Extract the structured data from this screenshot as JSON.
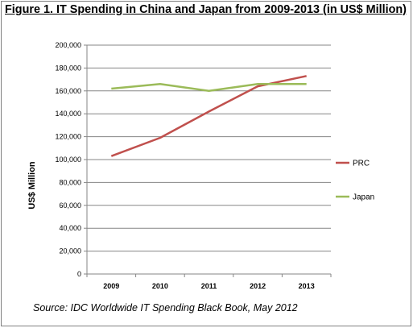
{
  "title": "Figure 1. IT Spending in China and Japan from 2009-2013 (in US$ Million)",
  "source": "Source: IDC Worldwide IT Spending Black Book, May 2012",
  "chart_data": {
    "type": "line",
    "title": "Figure 1. IT Spending in China and Japan from 2009-2013 (in US$ Million)",
    "xlabel": "",
    "ylabel": "US$ Million",
    "x": [
      "2009",
      "2010",
      "2011",
      "2012",
      "2013"
    ],
    "ylim": [
      0,
      200000
    ],
    "yticks": [
      "0",
      "20,000",
      "40,000",
      "60,000",
      "80,000",
      "100,000",
      "120,000",
      "140,000",
      "160,000",
      "180,000",
      "200,000"
    ],
    "grid": true,
    "legend_position": "right",
    "series": [
      {
        "name": "PRC",
        "color": "#C0504D",
        "values": [
          103000,
          119000,
          142000,
          164000,
          173000
        ]
      },
      {
        "name": "Japan",
        "color": "#9BBB59",
        "values": [
          162000,
          166000,
          160000,
          166000,
          166000
        ]
      }
    ]
  }
}
